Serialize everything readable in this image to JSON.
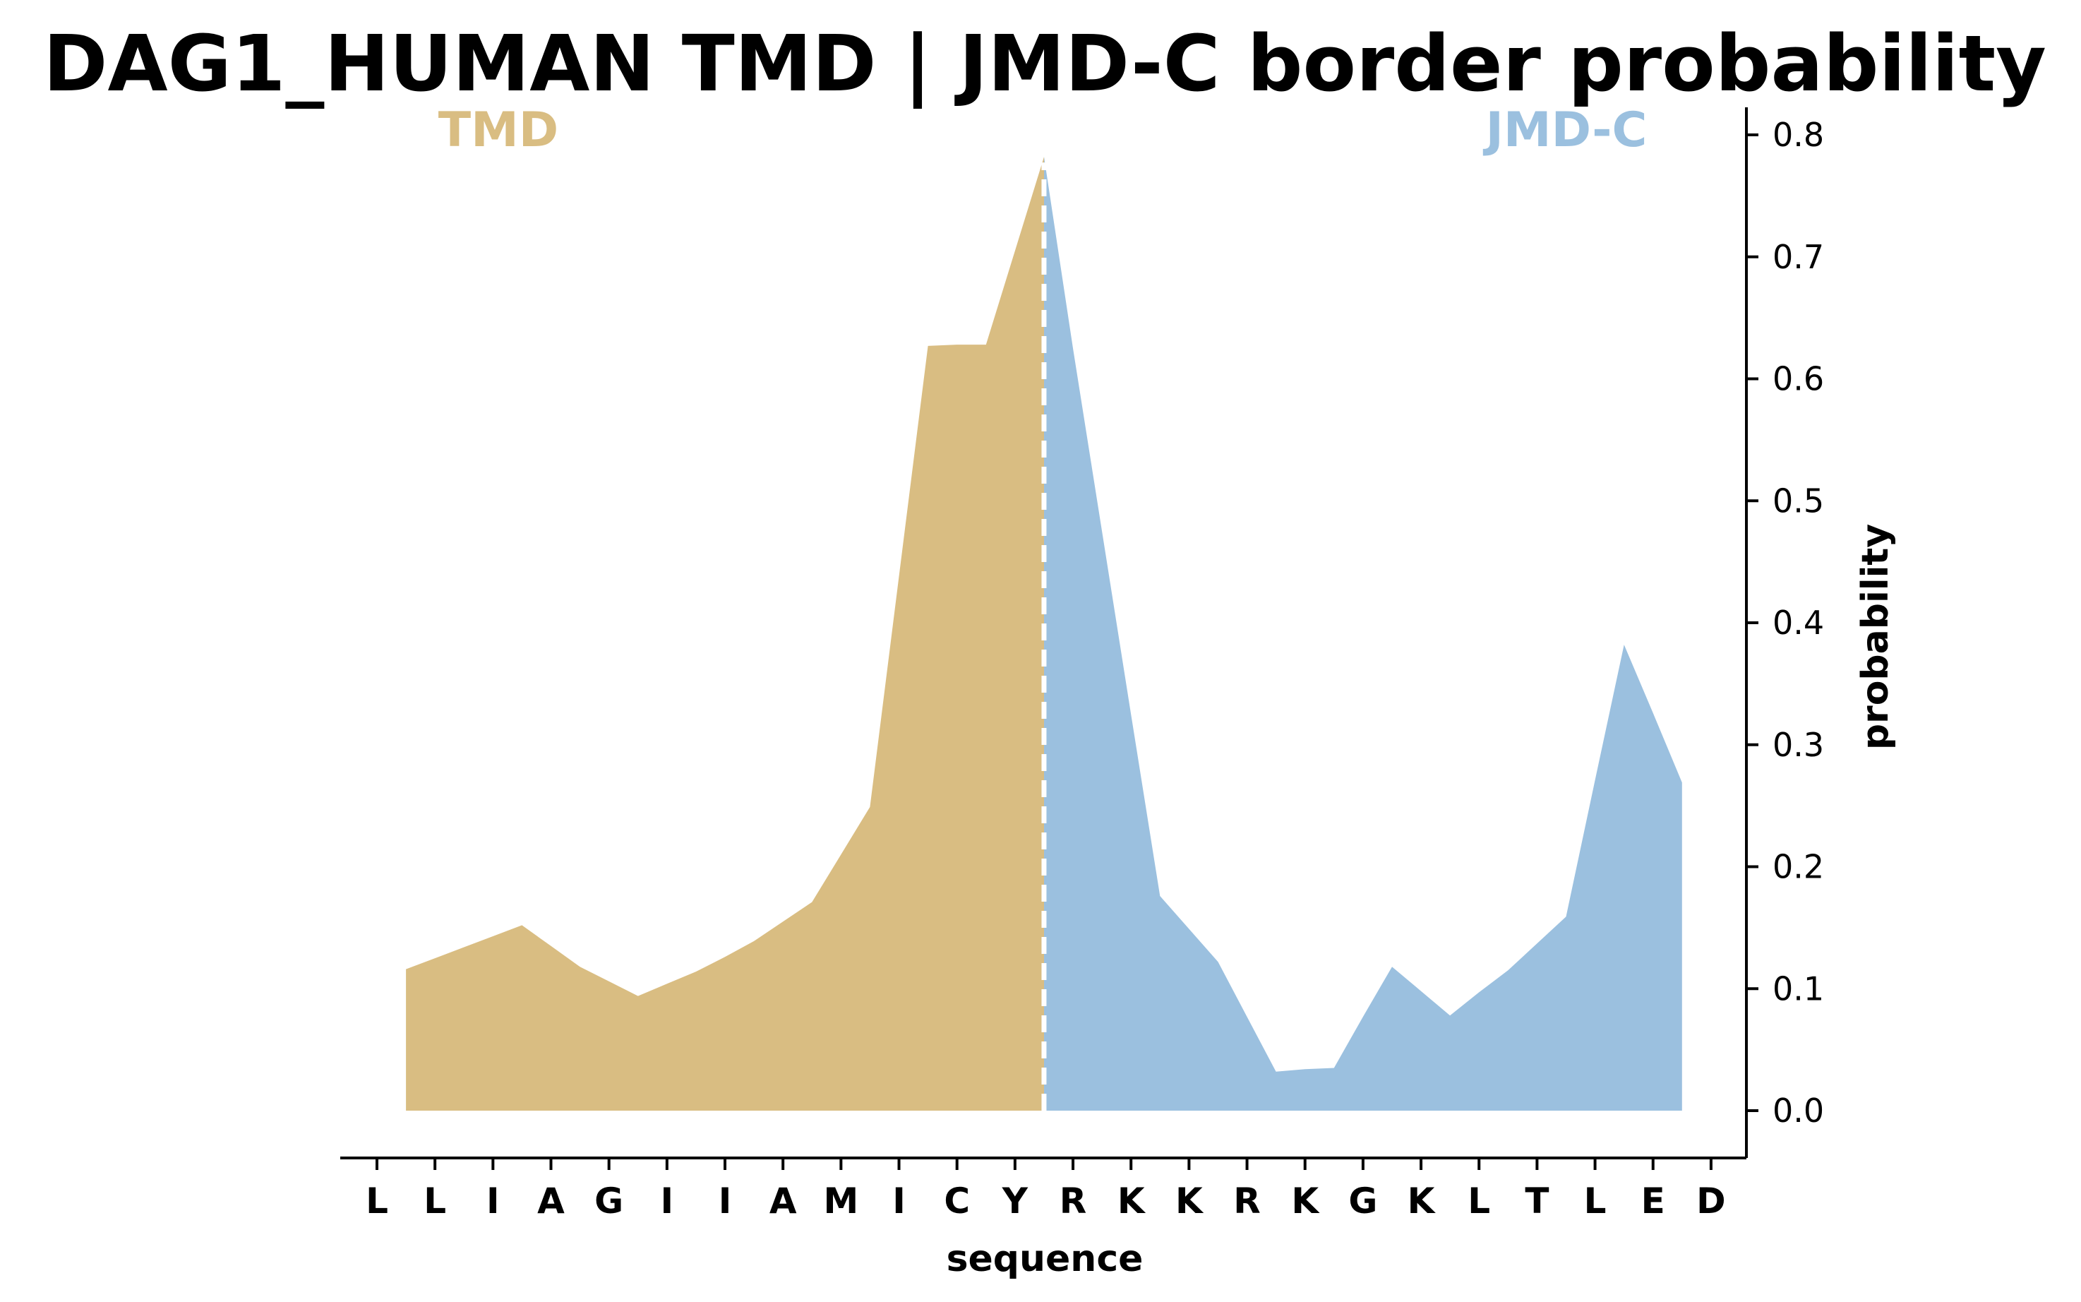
{
  "chart_data": {
    "type": "area",
    "title": "DAG1_HUMAN TMD | JMD-C border probability",
    "xlabel": "sequence",
    "ylabel": "probability",
    "categories": [
      "L",
      "L",
      "I",
      "A",
      "G",
      "I",
      "I",
      "A",
      "M",
      "I",
      "C",
      "Y",
      "R",
      "K",
      "K",
      "R",
      "K",
      "G",
      "K",
      "L",
      "T",
      "L",
      "E",
      "D"
    ],
    "ylim": [
      -0.04,
      0.82
    ],
    "yticks": [
      "0.0",
      "0.1",
      "0.2",
      "0.3",
      "0.4",
      "0.5",
      "0.6",
      "0.7",
      "0.8"
    ],
    "border_position": 11.5,
    "grid": false,
    "series": [
      {
        "name": "TMD",
        "color": "#d9bd82",
        "x": [
          0.5,
          1.0,
          1.5,
          2.0,
          2.5,
          3.0,
          3.5,
          4.0,
          4.5,
          5.0,
          5.5,
          6.0,
          6.5,
          7.0,
          7.5,
          8.0,
          8.5,
          9.0,
          9.5,
          10.0,
          10.5,
          11.0,
          11.5
        ],
        "values": [
          0.116,
          0.125,
          0.134,
          0.143,
          0.152,
          0.135,
          0.118,
          0.106,
          0.094,
          0.104,
          0.114,
          0.126,
          0.139,
          0.155,
          0.171,
          0.21,
          0.249,
          0.438,
          0.627,
          0.628,
          0.628,
          0.705,
          0.782
        ]
      },
      {
        "name": "JMD-C",
        "color": "#9bc0df",
        "x": [
          11.5,
          12.0,
          12.5,
          13.0,
          13.5,
          14.0,
          14.5,
          15.0,
          15.5,
          16.0,
          16.5,
          17.0,
          17.5,
          18.0,
          18.5,
          19.0,
          19.5,
          20.0,
          20.5,
          21.0,
          21.5,
          22.0,
          22.5
        ],
        "values": [
          0.782,
          0.625,
          0.475,
          0.325,
          0.176,
          0.149,
          0.122,
          0.077,
          0.032,
          0.034,
          0.035,
          0.077,
          0.118,
          0.098,
          0.078,
          0.097,
          0.115,
          0.137,
          0.159,
          0.271,
          0.382,
          0.326,
          0.269
        ]
      }
    ]
  },
  "styles": {
    "border_line_color": "#ffffff",
    "axis_color": "#000000"
  }
}
